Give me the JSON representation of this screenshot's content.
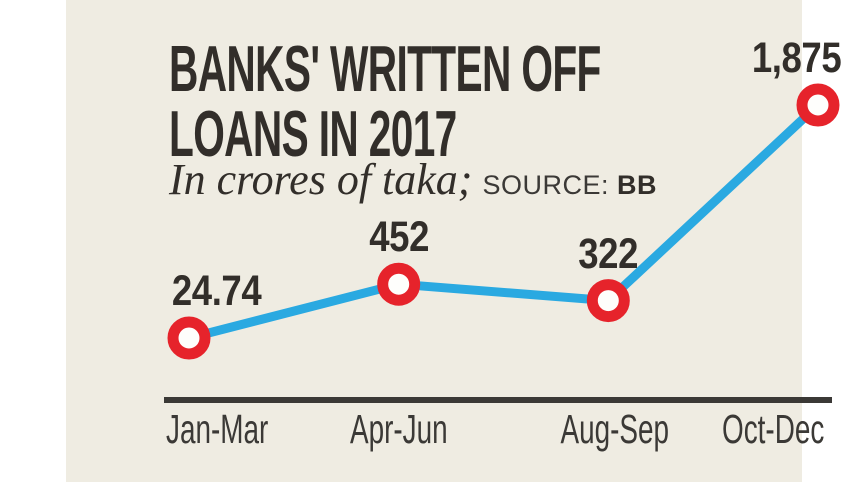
{
  "canvas": {
    "background": "#FFFFFF",
    "panel_background": "#EFECE2"
  },
  "header": {
    "title_line1": "BANKS' WRITTEN OFF",
    "title_line2": "LOANS IN 2017",
    "unit_note": "In crores of taka;",
    "source_label": "SOURCE:",
    "source_value": "BB"
  },
  "chart_data": {
    "type": "line",
    "title": "BANKS' WRITTEN OFF LOANS IN 2017",
    "unit": "crores of taka",
    "source": "BB",
    "categories": [
      "Jan-Mar",
      "Apr-Jun",
      "Aug-Sep",
      "Oct-Dec"
    ],
    "values": [
      24.74,
      452,
      322,
      1875
    ],
    "value_labels": [
      "24.74",
      "452",
      "322",
      "1,875"
    ],
    "xlabel": "",
    "ylabel": "",
    "ylim": [
      0,
      2000
    ],
    "grid": false,
    "legend": "none",
    "line_color": "#2AA9E1",
    "marker_ring_color": "#E6232B",
    "marker_fill_color": "#FEFEFC",
    "axis_line_color": "#3B3936",
    "text_color": "#322E2A"
  }
}
